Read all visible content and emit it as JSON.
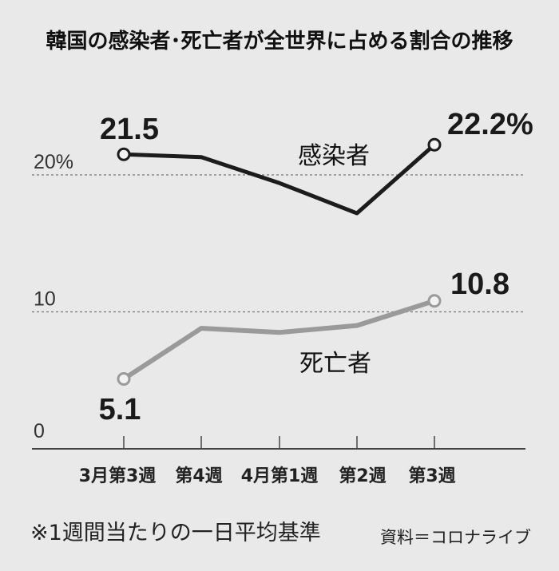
{
  "title": "韓国の感染者･死亡者が全世界に占める割合の推移",
  "note": "※1週間当たりの一日平均基準",
  "source": "資料＝コロナライブ",
  "chart_data": {
    "type": "line",
    "categories": [
      "3月第3週",
      "第4週",
      "4月第1週",
      "第2週",
      "第3週"
    ],
    "y_ticks": [
      "0",
      "10",
      "20%"
    ],
    "y_tick_values": [
      0,
      10,
      20
    ],
    "grid": "dashed at 10 and 20",
    "series": [
      {
        "name": "感染者",
        "values": [
          21.5,
          21.3,
          19.4,
          17.2,
          22.2
        ],
        "labels": [
          "21.5",
          "",
          "",
          "",
          "22.2%"
        ],
        "color": "#1c1c1c"
      },
      {
        "name": "死亡者",
        "values": [
          5.1,
          8.8,
          8.5,
          9.0,
          10.8
        ],
        "labels": [
          "5.1",
          "",
          "",
          "",
          "10.8"
        ],
        "color": "#9a9a9a"
      }
    ]
  }
}
